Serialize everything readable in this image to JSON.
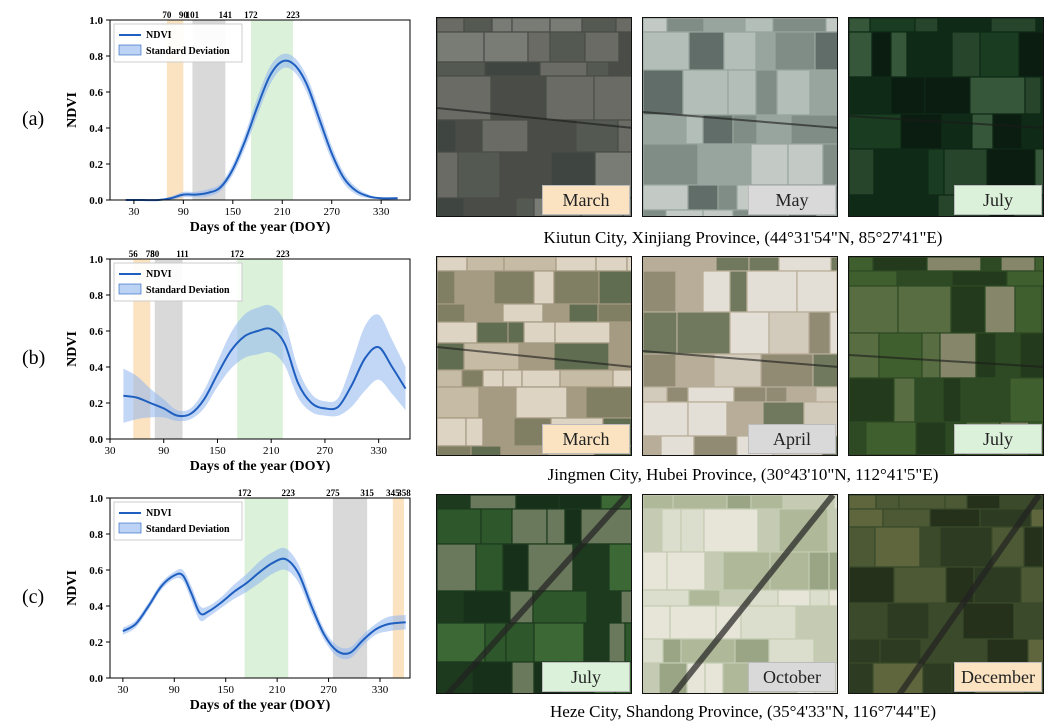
{
  "colors": {
    "line": "#1f5fbf",
    "band": "#8fb5ee",
    "orange": "#fbe3c2",
    "gray": "#d9d9d9",
    "green": "#dcf1da"
  },
  "rows": [
    {
      "label": "(a)",
      "location": "Kiutun City, Xinjiang Province, (44°31'54\"N, 85°27'41\"E)",
      "tiles": [
        {
          "name": "March",
          "color": "orange",
          "palette": [
            "#4a4d47",
            "#6b6d66",
            "#3f4540",
            "#7c7f78",
            "#555a52"
          ]
        },
        {
          "name": "May",
          "color": "gray",
          "palette": [
            "#98a49e",
            "#b6c0bb",
            "#7f8c86",
            "#c6cdc9",
            "#5f6b66"
          ]
        },
        {
          "name": "July",
          "color": "green",
          "palette": [
            "#0f2a17",
            "#1b3d22",
            "#29472d",
            "#0b1d10",
            "#3a5a3c"
          ]
        }
      ]
    },
    {
      "label": "(b)",
      "location": "Jingmen City, Hubei Province, (30°43'10\"N, 112°41'5\"E)",
      "tiles": [
        {
          "name": "March",
          "color": "orange",
          "palette": [
            "#a59a82",
            "#c8bea8",
            "#5d6b4e",
            "#e0d8c8",
            "#7f7d62"
          ]
        },
        {
          "name": "April",
          "color": "gray",
          "palette": [
            "#b7ad98",
            "#e6e2da",
            "#6d775a",
            "#8f8a73",
            "#d4cdbd"
          ]
        },
        {
          "name": "July",
          "color": "green",
          "palette": [
            "#2e4a24",
            "#42612f",
            "#5c6f45",
            "#233b1c",
            "#8a8a6e"
          ]
        }
      ]
    },
    {
      "label": "(c)",
      "location": "Heze City, Shandong Province, (35°4'33\"N, 116°7'44\"E)",
      "tiles": [
        {
          "name": "July",
          "color": "green",
          "palette": [
            "#1d3a1e",
            "#2f5a2c",
            "#3e6b37",
            "#17301a",
            "#6f7d60"
          ]
        },
        {
          "name": "October",
          "color": "gray",
          "palette": [
            "#c4cbb2",
            "#dde0cf",
            "#aeb897",
            "#e8e7da",
            "#98a383"
          ]
        },
        {
          "name": "December",
          "color": "orange",
          "palette": [
            "#3a4a2a",
            "#4d5a35",
            "#2c3b22",
            "#61683f",
            "#25301c"
          ]
        }
      ]
    }
  ],
  "chart_data": [
    {
      "type": "line",
      "xlabel": "Days of the year (DOY)",
      "ylabel": "NDVI",
      "xlim": [
        1,
        365
      ],
      "ylim": [
        0.0,
        1.0
      ],
      "xticks": [
        30,
        90,
        150,
        210,
        270,
        330
      ],
      "yticks": [
        "0.0",
        "0.2",
        "0.4",
        "0.6",
        "0.8",
        "1.0"
      ],
      "legend": [
        "NDVI",
        "Standard Deviation"
      ],
      "legend_position": "top-left",
      "periods": [
        {
          "start": 70,
          "end": 90,
          "color": "orange",
          "labels": [
            "70",
            "90"
          ]
        },
        {
          "start": 101,
          "end": 141,
          "color": "gray",
          "labels": [
            "101",
            "141"
          ]
        },
        {
          "start": 172,
          "end": 223,
          "color": "green",
          "labels": [
            "172",
            "223"
          ]
        }
      ],
      "x": [
        20,
        40,
        60,
        75,
        90,
        105,
        120,
        135,
        150,
        165,
        180,
        195,
        210,
        225,
        240,
        255,
        270,
        285,
        300,
        315,
        330,
        350
      ],
      "y": [
        0.0,
        0.0,
        0.0,
        0.01,
        0.03,
        0.03,
        0.04,
        0.07,
        0.17,
        0.33,
        0.52,
        0.69,
        0.77,
        0.75,
        0.64,
        0.45,
        0.26,
        0.12,
        0.05,
        0.02,
        0.01,
        0.01
      ],
      "sd": [
        0.005,
        0.005,
        0.005,
        0.01,
        0.015,
        0.015,
        0.02,
        0.02,
        0.03,
        0.04,
        0.05,
        0.05,
        0.04,
        0.04,
        0.045,
        0.05,
        0.04,
        0.03,
        0.02,
        0.01,
        0.005,
        0.005
      ]
    },
    {
      "type": "line",
      "xlabel": "Days of the year (DOY)",
      "ylabel": "NDVI",
      "xlim": [
        30,
        365
      ],
      "ylim": [
        0.0,
        1.0
      ],
      "xticks": [
        30,
        90,
        150,
        210,
        270,
        330
      ],
      "yticks": [
        "0.0",
        "0.2",
        "0.4",
        "0.6",
        "0.8",
        "1.0"
      ],
      "legend": [
        "NDVI",
        "Standard Deviation"
      ],
      "legend_position": "top-left",
      "periods": [
        {
          "start": 56,
          "end": 75,
          "color": "orange",
          "labels": [
            "56",
            "75"
          ]
        },
        {
          "start": 80,
          "end": 111,
          "color": "gray",
          "labels": [
            "80",
            "111"
          ]
        },
        {
          "start": 172,
          "end": 223,
          "color": "green",
          "labels": [
            "172",
            "223"
          ]
        }
      ],
      "x": [
        45,
        60,
        75,
        90,
        105,
        120,
        135,
        150,
        165,
        180,
        195,
        210,
        225,
        240,
        255,
        270,
        285,
        300,
        315,
        330,
        345,
        360
      ],
      "y": [
        0.24,
        0.23,
        0.2,
        0.17,
        0.13,
        0.14,
        0.22,
        0.36,
        0.49,
        0.57,
        0.6,
        0.61,
        0.53,
        0.31,
        0.2,
        0.17,
        0.18,
        0.3,
        0.45,
        0.51,
        0.4,
        0.28
      ],
      "sd": [
        0.15,
        0.12,
        0.08,
        0.05,
        0.03,
        0.03,
        0.05,
        0.07,
        0.1,
        0.12,
        0.13,
        0.13,
        0.12,
        0.08,
        0.05,
        0.04,
        0.05,
        0.12,
        0.18,
        0.18,
        0.15,
        0.12
      ]
    },
    {
      "type": "line",
      "xlabel": "Days of the year (DOY)",
      "ylabel": "NDVI",
      "xlim": [
        15,
        365
      ],
      "ylim": [
        0.0,
        1.0
      ],
      "xticks": [
        30,
        90,
        150,
        210,
        270,
        330
      ],
      "yticks": [
        "0.0",
        "0.2",
        "0.4",
        "0.6",
        "0.8",
        "1.0"
      ],
      "legend": [
        "NDVI",
        "Standard Deviation"
      ],
      "legend_position": "top-left",
      "periods": [
        {
          "start": 172,
          "end": 223,
          "color": "green",
          "labels": [
            "172",
            "223"
          ]
        },
        {
          "start": 275,
          "end": 315,
          "color": "gray",
          "labels": [
            "275",
            "315"
          ]
        },
        {
          "start": 345,
          "end": 358,
          "color": "orange",
          "labels": [
            "345",
            "358"
          ]
        }
      ],
      "x": [
        30,
        45,
        60,
        75,
        90,
        100,
        110,
        120,
        130,
        145,
        160,
        175,
        190,
        205,
        220,
        235,
        250,
        265,
        280,
        295,
        310,
        325,
        340,
        360
      ],
      "y": [
        0.26,
        0.3,
        0.4,
        0.51,
        0.57,
        0.57,
        0.47,
        0.36,
        0.37,
        0.42,
        0.48,
        0.53,
        0.59,
        0.64,
        0.66,
        0.58,
        0.4,
        0.24,
        0.15,
        0.14,
        0.21,
        0.27,
        0.3,
        0.31
      ],
      "sd": [
        0.02,
        0.02,
        0.02,
        0.02,
        0.02,
        0.03,
        0.04,
        0.04,
        0.03,
        0.03,
        0.04,
        0.05,
        0.06,
        0.06,
        0.06,
        0.05,
        0.04,
        0.03,
        0.03,
        0.03,
        0.03,
        0.03,
        0.04,
        0.04
      ]
    }
  ]
}
